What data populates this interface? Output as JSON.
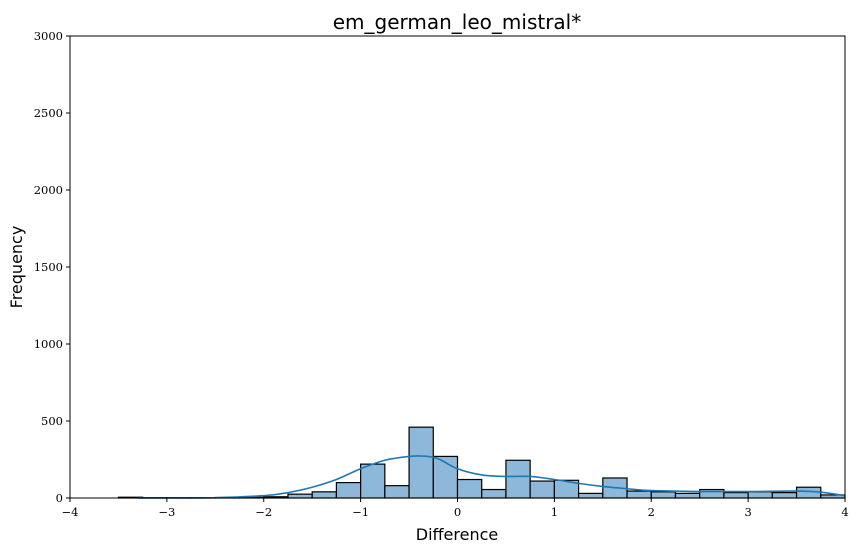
{
  "chart_data": {
    "type": "histogram",
    "title": "em_german_leo_mistral*",
    "xlabel": "Difference",
    "ylabel": "Frequency",
    "xlim": [
      -4,
      4
    ],
    "ylim": [
      0,
      3000
    ],
    "xticks": [
      -4,
      -3,
      -2,
      -1,
      0,
      1,
      2,
      3,
      4
    ],
    "yticks": [
      0,
      500,
      1000,
      1500,
      2000,
      2500,
      3000
    ],
    "xtick_labels": [
      "−4",
      "−3",
      "−2",
      "−1",
      "0",
      "1",
      "2",
      "3",
      "4"
    ],
    "ytick_labels": [
      "0",
      "500",
      "1000",
      "1500",
      "2000",
      "2500",
      "3000"
    ],
    "bin_width": 0.25,
    "bins": [
      {
        "x0": -3.5,
        "count": 5
      },
      {
        "x0": -3.25,
        "count": 2
      },
      {
        "x0": -3.0,
        "count": 2
      },
      {
        "x0": -2.75,
        "count": 2
      },
      {
        "x0": -2.5,
        "count": 3
      },
      {
        "x0": -2.25,
        "count": 5
      },
      {
        "x0": -2.0,
        "count": 8
      },
      {
        "x0": -1.75,
        "count": 25
      },
      {
        "x0": -1.5,
        "count": 40
      },
      {
        "x0": -1.25,
        "count": 100
      },
      {
        "x0": -1.0,
        "count": 220
      },
      {
        "x0": -0.75,
        "count": 80
      },
      {
        "x0": -0.5,
        "count": 460
      },
      {
        "x0": -0.25,
        "count": 270
      },
      {
        "x0": 0.0,
        "count": 120
      },
      {
        "x0": 0.25,
        "count": 55
      },
      {
        "x0": 0.5,
        "count": 245
      },
      {
        "x0": 0.75,
        "count": 110
      },
      {
        "x0": 1.0,
        "count": 115
      },
      {
        "x0": 1.25,
        "count": 30
      },
      {
        "x0": 1.5,
        "count": 130
      },
      {
        "x0": 1.75,
        "count": 45
      },
      {
        "x0": 2.0,
        "count": 40
      },
      {
        "x0": 2.25,
        "count": 30
      },
      {
        "x0": 2.5,
        "count": 55
      },
      {
        "x0": 2.75,
        "count": 35
      },
      {
        "x0": 3.0,
        "count": 40
      },
      {
        "x0": 3.25,
        "count": 35
      },
      {
        "x0": 3.5,
        "count": 70
      },
      {
        "x0": 3.75,
        "count": 20
      }
    ],
    "kde": {
      "x": [
        -3.3,
        -3.0,
        -2.5,
        -2.0,
        -1.75,
        -1.5,
        -1.25,
        -1.0,
        -0.75,
        -0.5,
        -0.35,
        -0.2,
        0.0,
        0.25,
        0.5,
        0.75,
        1.0,
        1.25,
        1.5,
        1.75,
        2.0,
        2.5,
        3.0,
        3.5,
        3.75,
        4.0
      ],
      "y": [
        0,
        0,
        2,
        15,
        35,
        70,
        120,
        190,
        245,
        270,
        272,
        255,
        190,
        150,
        140,
        140,
        120,
        95,
        75,
        60,
        48,
        42,
        42,
        45,
        38,
        15
      ]
    },
    "bar_color": "#8DB8D9",
    "bar_edge_color": "#000000",
    "line_color": "#1F77B4",
    "grid": false
  }
}
